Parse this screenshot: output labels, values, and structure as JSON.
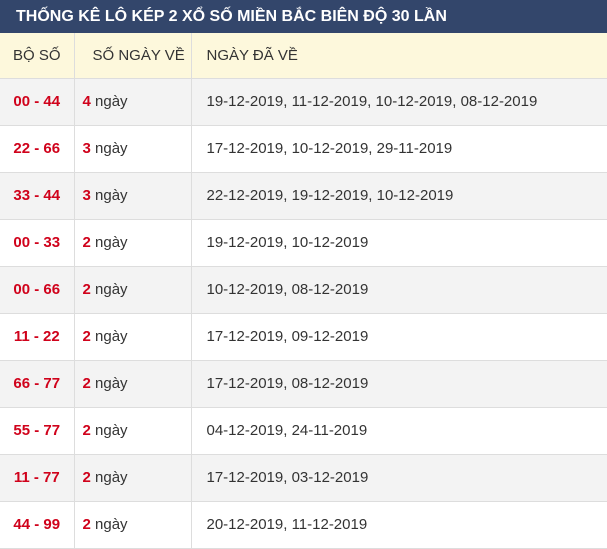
{
  "title": "THỐNG KÊ LÔ KÉP 2 XỔ SỐ MIỀN BẮC BIÊN ĐỘ 30 LẦN",
  "headers": [
    "BỘ SỐ",
    "SỐ NGÀY VỀ",
    "NGÀY ĐÃ VỀ"
  ],
  "unit": "ngày",
  "colors": {
    "header_bar": "#33466b",
    "accent_red": "#d0021b",
    "header_row": "#fdf8dc"
  },
  "rows": [
    {
      "pair": "00 - 44",
      "count": "4",
      "dates": "19-12-2019, 11-12-2019, 10-12-2019, 08-12-2019"
    },
    {
      "pair": "22 - 66",
      "count": "3",
      "dates": "17-12-2019, 10-12-2019, 29-11-2019"
    },
    {
      "pair": "33 - 44",
      "count": "3",
      "dates": "22-12-2019, 19-12-2019, 10-12-2019"
    },
    {
      "pair": "00 - 33",
      "count": "2",
      "dates": "19-12-2019, 10-12-2019"
    },
    {
      "pair": "00 - 66",
      "count": "2",
      "dates": "10-12-2019, 08-12-2019"
    },
    {
      "pair": "11 - 22",
      "count": "2",
      "dates": "17-12-2019, 09-12-2019"
    },
    {
      "pair": "66 - 77",
      "count": "2",
      "dates": "17-12-2019, 08-12-2019"
    },
    {
      "pair": "55 - 77",
      "count": "2",
      "dates": "04-12-2019, 24-11-2019"
    },
    {
      "pair": "11 - 77",
      "count": "2",
      "dates": "17-12-2019, 03-12-2019"
    },
    {
      "pair": "44 - 99",
      "count": "2",
      "dates": "20-12-2019, 11-12-2019"
    }
  ]
}
